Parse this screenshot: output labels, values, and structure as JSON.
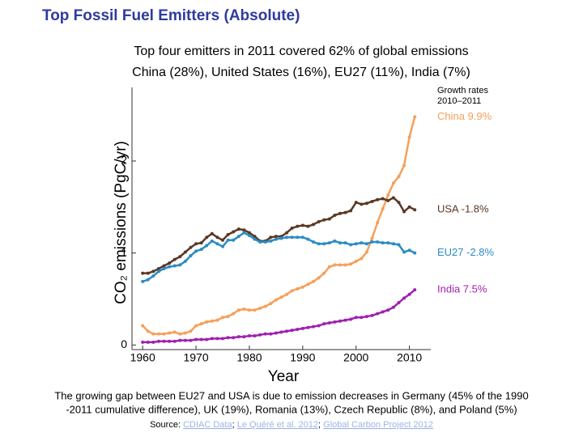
{
  "header": {
    "title": "Top Fossil Fuel Emitters (Absolute)",
    "subtitle": [
      "Top four emitters in 2011 covered 62% of global emissions",
      "China (28%), United States (16%), EU27 (11%), India (7%)"
    ]
  },
  "chart_data": {
    "type": "line",
    "xlabel": "Year",
    "ylabel": "CO₂ emissions (PgC/yr)",
    "legend_title": [
      "Growth rates",
      "2010–2011"
    ],
    "x": [
      1960,
      1961,
      1962,
      1963,
      1964,
      1965,
      1966,
      1967,
      1968,
      1969,
      1970,
      1971,
      1972,
      1973,
      1974,
      1975,
      1976,
      1977,
      1978,
      1979,
      1980,
      1981,
      1982,
      1983,
      1984,
      1985,
      1986,
      1987,
      1988,
      1989,
      1990,
      1991,
      1992,
      1993,
      1994,
      1995,
      1996,
      1997,
      1998,
      1999,
      2000,
      2001,
      2002,
      2003,
      2004,
      2005,
      2006,
      2007,
      2008,
      2009,
      2010,
      2011
    ],
    "series": [
      {
        "name": "China 9.9%",
        "color": "#f5a05a",
        "values": [
          0.21,
          0.15,
          0.12,
          0.12,
          0.12,
          0.13,
          0.14,
          0.12,
          0.13,
          0.15,
          0.21,
          0.23,
          0.25,
          0.26,
          0.27,
          0.3,
          0.31,
          0.34,
          0.38,
          0.39,
          0.38,
          0.38,
          0.4,
          0.42,
          0.45,
          0.49,
          0.52,
          0.55,
          0.59,
          0.61,
          0.63,
          0.66,
          0.69,
          0.73,
          0.78,
          0.85,
          0.87,
          0.87,
          0.87,
          0.88,
          0.91,
          0.94,
          1.01,
          1.16,
          1.33,
          1.48,
          1.63,
          1.76,
          1.83,
          1.95,
          2.26,
          2.48
        ]
      },
      {
        "name": "USA -1.8%",
        "color": "#5a3825",
        "values": [
          0.78,
          0.78,
          0.8,
          0.83,
          0.86,
          0.89,
          0.93,
          0.96,
          1.01,
          1.06,
          1.1,
          1.11,
          1.17,
          1.21,
          1.17,
          1.14,
          1.2,
          1.23,
          1.26,
          1.25,
          1.22,
          1.18,
          1.13,
          1.13,
          1.17,
          1.18,
          1.18,
          1.22,
          1.27,
          1.29,
          1.3,
          1.29,
          1.31,
          1.34,
          1.36,
          1.37,
          1.41,
          1.43,
          1.44,
          1.46,
          1.55,
          1.53,
          1.54,
          1.56,
          1.58,
          1.59,
          1.57,
          1.6,
          1.55,
          1.45,
          1.5,
          1.47
        ]
      },
      {
        "name": "EU27 -2.8%",
        "color": "#2b8cc4",
        "values": [
          0.69,
          0.71,
          0.75,
          0.8,
          0.83,
          0.85,
          0.86,
          0.87,
          0.91,
          0.97,
          1.02,
          1.04,
          1.08,
          1.13,
          1.1,
          1.07,
          1.14,
          1.14,
          1.18,
          1.22,
          1.19,
          1.15,
          1.12,
          1.12,
          1.13,
          1.15,
          1.16,
          1.17,
          1.17,
          1.17,
          1.17,
          1.15,
          1.12,
          1.1,
          1.1,
          1.11,
          1.13,
          1.11,
          1.11,
          1.09,
          1.1,
          1.11,
          1.1,
          1.12,
          1.12,
          1.11,
          1.11,
          1.1,
          1.09,
          1.01,
          1.03,
          1.0
        ]
      },
      {
        "name": "India 7.5%",
        "color": "#a020b0",
        "values": [
          0.03,
          0.03,
          0.03,
          0.04,
          0.04,
          0.04,
          0.04,
          0.05,
          0.05,
          0.05,
          0.06,
          0.06,
          0.06,
          0.07,
          0.07,
          0.07,
          0.08,
          0.08,
          0.09,
          0.09,
          0.1,
          0.1,
          0.11,
          0.12,
          0.12,
          0.13,
          0.14,
          0.15,
          0.16,
          0.17,
          0.18,
          0.19,
          0.2,
          0.21,
          0.23,
          0.24,
          0.25,
          0.26,
          0.27,
          0.28,
          0.3,
          0.3,
          0.31,
          0.32,
          0.34,
          0.36,
          0.38,
          0.41,
          0.46,
          0.51,
          0.55,
          0.6
        ]
      }
    ],
    "xlim": [
      1958,
      2014
    ],
    "xticks": [
      1960,
      1970,
      1980,
      1990,
      2000,
      2010
    ],
    "ylim": [
      -0.05,
      2.8
    ],
    "yticks": [
      0,
      1,
      2
    ]
  },
  "footnote": [
    "The growing gap between EU27 and USA is due to emission decreases in Germany (45% of the 1990",
    "-2011 cumulative difference), UK (19%), Romania (13%), Czech Republic (8%), and Poland (5%)"
  ],
  "source": {
    "label": "Source:",
    "separator": ";",
    "links": [
      "CDIAC Data",
      "Le Quéré et al. 2012",
      "Global Carbon Project 2012"
    ]
  }
}
